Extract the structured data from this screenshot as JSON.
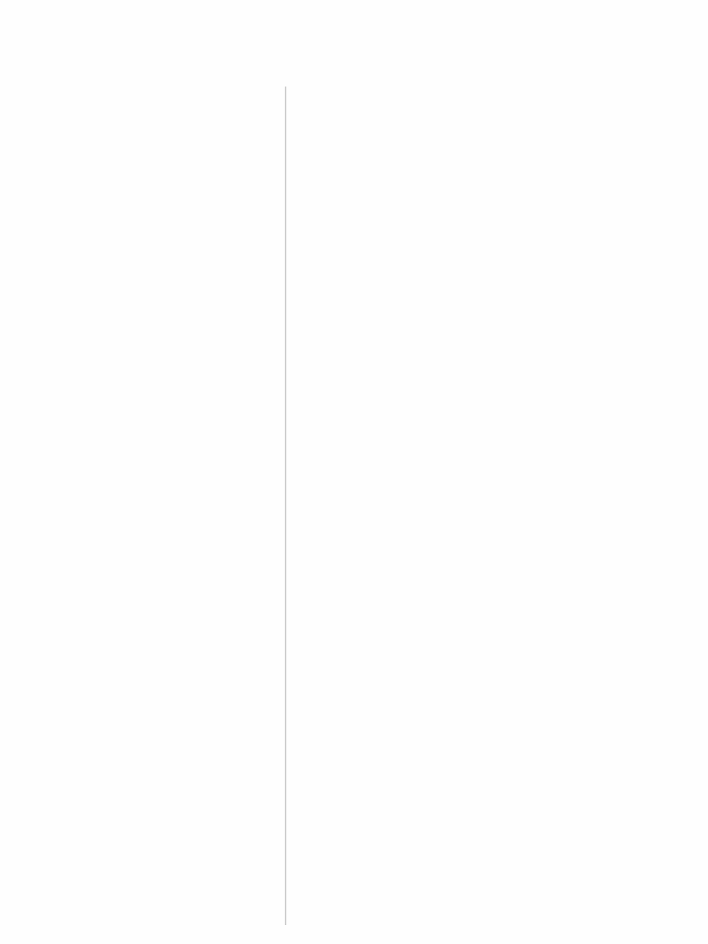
{
  "theme": {
    "background": "#fefefe",
    "divider": "#cfcfcf"
  }
}
